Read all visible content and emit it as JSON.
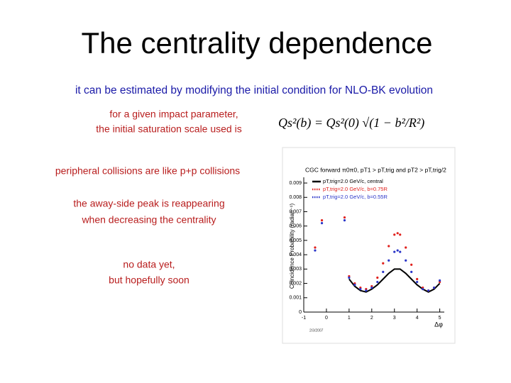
{
  "title": "The centrality dependence",
  "subtitle": "it can be estimated by modifying the initial condition for NLO-BK evolution",
  "notes": [
    [
      "for a given impact parameter,",
      "the initial saturation scale used is"
    ],
    [
      "peripheral collisions are like p+p collisions"
    ],
    [
      "the away-side peak is reappearing",
      "when decreasing the centrality"
    ],
    [
      "no data yet,",
      "but hopefully soon"
    ]
  ],
  "formula": "Qs²(b) = Qs²(0) √(1 − b²/R²)",
  "chart_data": {
    "type": "scatter",
    "title": "CGC forward π0π0, pT1 > pT,trig and pT2 > pT,trig/2",
    "x_label": "Δφ",
    "y_label": "Coincidence Probability (radian⁻¹)",
    "footer": "2/3/2007",
    "x": [
      -0.5,
      -0.2,
      0.8,
      1.0,
      1.25,
      1.5,
      1.75,
      2.0,
      2.25,
      2.5,
      2.75,
      3.0,
      3.14,
      3.25,
      3.5,
      3.75,
      4.0,
      4.25,
      4.5,
      4.75,
      5.0
    ],
    "series": [
      {
        "name": "pT,trig=2.0 GeV/c, central",
        "color": "#000000",
        "line": true,
        "values": [
          null,
          null,
          null,
          0.0023,
          0.0018,
          0.0015,
          0.0014,
          0.0016,
          0.0019,
          0.0023,
          0.0027,
          0.003,
          0.003,
          0.003,
          0.0027,
          0.0023,
          0.0019,
          0.0016,
          0.0014,
          0.0016,
          0.002
        ]
      },
      {
        "name": "pT,trig=2.0 GeV/c, b=0.75R",
        "color": "#e0201c",
        "line": false,
        "values": [
          0.0045,
          0.0064,
          0.0066,
          0.0025,
          0.002,
          0.0017,
          0.0016,
          0.0018,
          0.0024,
          0.0034,
          0.0046,
          0.0054,
          0.0055,
          0.0054,
          0.0045,
          0.0033,
          0.0023,
          0.0017,
          0.0015,
          0.0017,
          0.0021
        ]
      },
      {
        "name": "pT,trig=2.0 GeV/c, b=0.55R",
        "color": "#2a35c8",
        "line": false,
        "values": [
          0.0043,
          0.0062,
          0.0064,
          0.0024,
          0.0019,
          0.0016,
          0.0015,
          0.0017,
          0.0021,
          0.0028,
          0.0036,
          0.0042,
          0.0043,
          0.0042,
          0.0036,
          0.0028,
          0.0021,
          0.0016,
          0.0015,
          0.0017,
          0.0022
        ]
      }
    ],
    "xlim": [
      -1,
      5.2
    ],
    "xticks": [
      -1,
      0,
      1,
      2,
      3,
      4,
      5
    ],
    "ylim": [
      0,
      0.0092
    ],
    "yticks": [
      0,
      0.001,
      0.002,
      0.003,
      0.004,
      0.005,
      0.006,
      0.007,
      0.008,
      0.009
    ]
  }
}
